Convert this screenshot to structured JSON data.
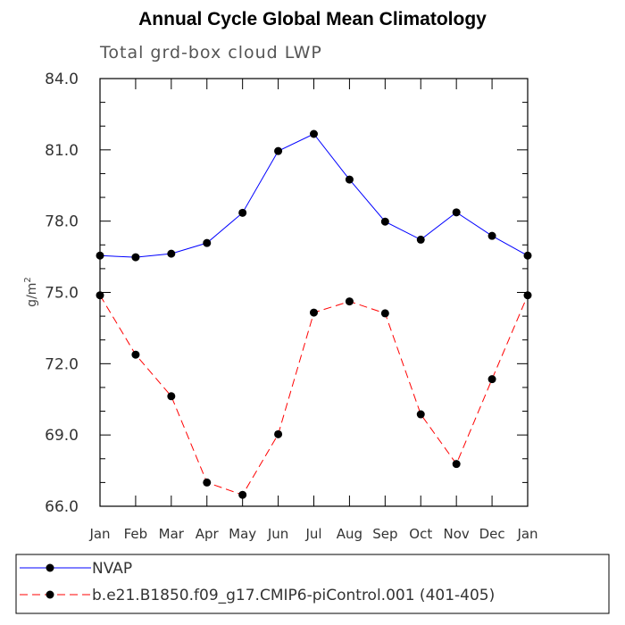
{
  "chart_data": {
    "type": "line",
    "title": "Annual Cycle Global Mean Climatology",
    "subtitle": "Total grd-box cloud LWP",
    "ylabel_base": "g/m",
    "ylabel_exp": "2",
    "ylim": [
      66.0,
      84.0
    ],
    "yticks": [
      "84.0",
      "81.0",
      "78.0",
      "75.0",
      "72.0",
      "69.0",
      "66.0"
    ],
    "ytick_values": [
      84,
      81,
      78,
      75,
      72,
      69,
      66
    ],
    "categories": [
      "Jan",
      "Feb",
      "Mar",
      "Apr",
      "May",
      "Jun",
      "Jul",
      "Aug",
      "Sep",
      "Oct",
      "Nov",
      "Dec",
      "Jan"
    ],
    "series": [
      {
        "name": "NVAP",
        "color": "#0000ff",
        "style": "solid",
        "values": [
          76.55,
          76.48,
          76.63,
          77.08,
          78.35,
          80.95,
          81.67,
          79.75,
          77.98,
          77.22,
          78.37,
          77.38,
          76.55
        ]
      },
      {
        "name": "b.e21.B1850.f09_g17.CMIP6-piControl.001 (401-405)",
        "color": "#ff0000",
        "style": "dashed",
        "values": [
          74.88,
          72.38,
          70.63,
          67.0,
          66.48,
          69.03,
          74.15,
          74.62,
          74.12,
          69.87,
          67.78,
          71.35,
          74.88
        ]
      }
    ]
  }
}
